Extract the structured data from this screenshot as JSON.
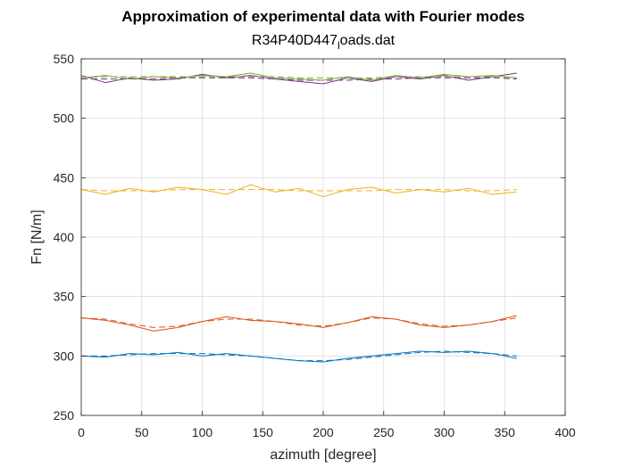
{
  "chart_data": {
    "type": "line",
    "title": "Approximation of experimental data with Fourier modes",
    "subtitle": "R34P40D447_loads.dat",
    "subtitle_main": "R34P40D447",
    "subtitle_sub": "l",
    "subtitle_tail": "oads.dat",
    "xlabel": "azimuth [degree]",
    "ylabel": "Fn [N/m]",
    "xlim": [
      0,
      400
    ],
    "ylim": [
      250,
      550
    ],
    "xticks": [
      0,
      50,
      100,
      150,
      200,
      250,
      300,
      350,
      400
    ],
    "yticks": [
      250,
      300,
      350,
      400,
      450,
      500,
      550
    ],
    "grid": true,
    "legend": "none",
    "series": [
      {
        "color": "#0072BD",
        "x": [
          0,
          20,
          40,
          60,
          80,
          100,
          120,
          140,
          160,
          180,
          200,
          220,
          240,
          260,
          280,
          300,
          320,
          340,
          360
        ],
        "experimental": [
          300,
          299,
          302,
          301,
          303,
          300,
          302,
          300,
          298,
          296,
          295,
          298,
          300,
          302,
          304,
          303,
          304,
          302,
          298
        ],
        "fourier": [
          300,
          300,
          301,
          302,
          302,
          302,
          301,
          300,
          298,
          296,
          296,
          297,
          299,
          301,
          303,
          304,
          303,
          302,
          300
        ]
      },
      {
        "color": "#D95319",
        "x": [
          0,
          20,
          40,
          60,
          80,
          100,
          120,
          140,
          160,
          180,
          200,
          220,
          240,
          260,
          280,
          300,
          320,
          340,
          360
        ],
        "experimental": [
          332,
          330,
          326,
          321,
          324,
          329,
          333,
          330,
          329,
          327,
          324,
          328,
          333,
          331,
          326,
          324,
          326,
          329,
          334
        ],
        "fourier": [
          332,
          331,
          327,
          324,
          325,
          329,
          331,
          331,
          329,
          326,
          325,
          328,
          332,
          331,
          327,
          325,
          326,
          329,
          332
        ]
      },
      {
        "color": "#EDB120",
        "x": [
          0,
          20,
          40,
          60,
          80,
          100,
          120,
          140,
          160,
          180,
          200,
          220,
          240,
          260,
          280,
          300,
          320,
          340,
          360
        ],
        "experimental": [
          440,
          436,
          441,
          438,
          442,
          440,
          436,
          444,
          438,
          441,
          434,
          440,
          442,
          437,
          440,
          438,
          441,
          436,
          438
        ],
        "fourier": [
          440,
          439,
          439,
          439,
          440,
          440,
          440,
          440,
          440,
          439,
          439,
          439,
          439,
          440,
          440,
          440,
          439,
          439,
          440
        ]
      },
      {
        "color": "#7E2F8E",
        "x": [
          0,
          20,
          40,
          60,
          80,
          100,
          120,
          140,
          160,
          180,
          200,
          220,
          240,
          260,
          280,
          300,
          320,
          340,
          360
        ],
        "experimental": [
          536,
          530,
          534,
          532,
          533,
          537,
          534,
          536,
          533,
          531,
          529,
          534,
          531,
          535,
          533,
          536,
          532,
          535,
          538
        ],
        "fourier": [
          533,
          533,
          533,
          533,
          534,
          534,
          534,
          534,
          533,
          532,
          532,
          532,
          533,
          533,
          534,
          534,
          534,
          534,
          533
        ]
      },
      {
        "color": "#77AC30",
        "x": [
          0,
          20,
          40,
          60,
          80,
          100,
          120,
          140,
          160,
          180,
          200,
          220,
          240,
          260,
          280,
          300,
          320,
          340,
          360
        ],
        "experimental": [
          534,
          536,
          533,
          535,
          534,
          536,
          535,
          538,
          534,
          533,
          532,
          535,
          532,
          536,
          534,
          537,
          535,
          536,
          534
        ],
        "fourier": [
          534,
          535,
          535,
          535,
          535,
          535,
          535,
          535,
          535,
          534,
          534,
          534,
          534,
          535,
          535,
          535,
          535,
          535,
          534
        ]
      }
    ]
  }
}
